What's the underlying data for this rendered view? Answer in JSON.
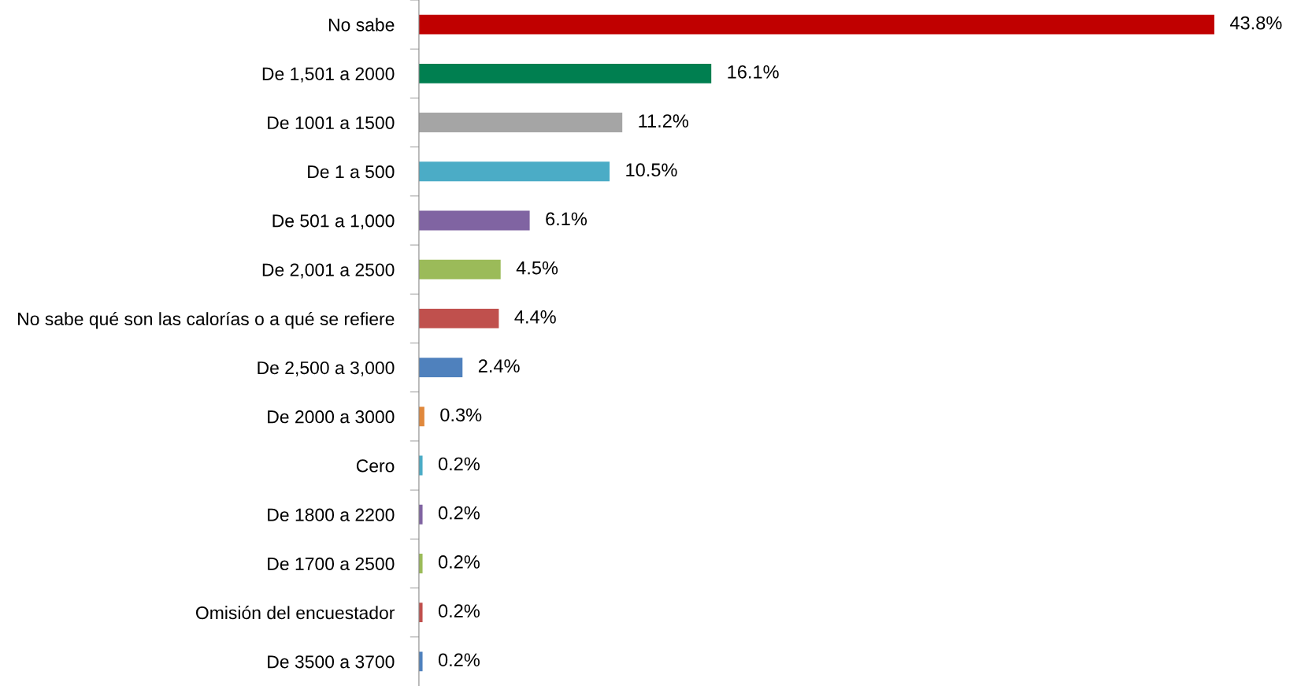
{
  "chart_data": {
    "type": "bar",
    "orientation": "horizontal",
    "categories": [
      "No sabe",
      "De 1,501 a 2000",
      "De 1001 a 1500",
      "De 1 a 500",
      "De 501 a 1,000",
      "De 2,001 a 2500",
      "No sabe qué son las calorías o a qué se refiere",
      "De 2,500 a 3,000",
      "De 2000 a 3000",
      "Cero",
      "De 1800 a 2200",
      "De 1700 a 2500",
      "Omisión del encuestador",
      "De 3500 a 3700"
    ],
    "values": [
      43.8,
      16.1,
      11.2,
      10.5,
      6.1,
      4.5,
      4.4,
      2.4,
      0.3,
      0.2,
      0.2,
      0.2,
      0.2,
      0.2
    ],
    "colors": [
      "#c00000",
      "#007f50",
      "#a5a5a5",
      "#4bacc6",
      "#8064a2",
      "#9bbb59",
      "#c0504d",
      "#4f81bd",
      "#e0883c",
      "#4bacc6",
      "#8064a2",
      "#9bbb59",
      "#c0504d",
      "#4f81bd"
    ],
    "value_labels": [
      "43.8%",
      "16.1%",
      "11.2%",
      "10.5%",
      "6.1%",
      "4.5%",
      "4.4%",
      "2.4%",
      "0.3%",
      "0.2%",
      "0.2%",
      "0.2%",
      "0.2%",
      "0.2%"
    ],
    "grid": false,
    "tick_labels": "y"
  }
}
